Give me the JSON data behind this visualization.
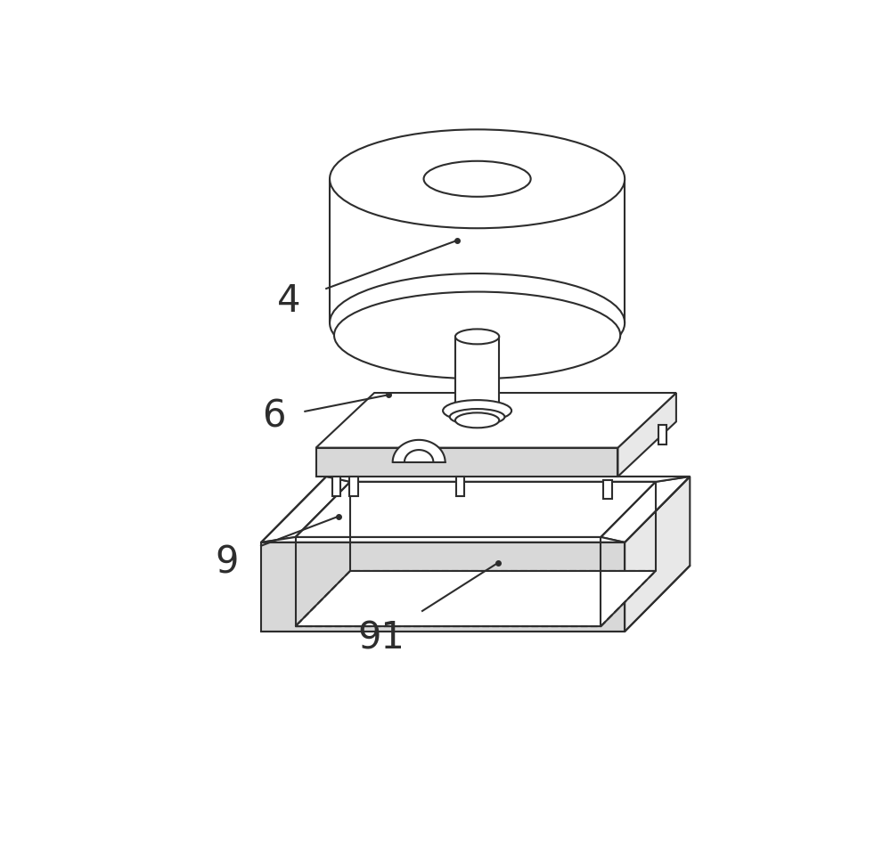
{
  "bg_color": "#ffffff",
  "line_color": "#2d2d2d",
  "line_width": 1.5,
  "label_4": "4",
  "label_6": "6",
  "label_9": "9",
  "label_91": "91",
  "label_fontsize": 30,
  "fig_width": 10.0,
  "fig_height": 9.61,
  "dpi": 100
}
